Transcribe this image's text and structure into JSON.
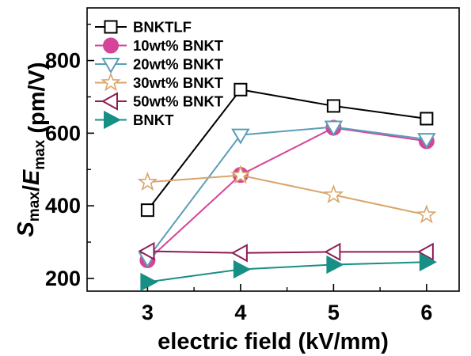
{
  "chart_data": {
    "type": "line",
    "xlabel": "electric field (kV/mm)",
    "ylabel": {
      "parts": [
        {
          "text": "S",
          "style": "italic",
          "sub": "max"
        },
        {
          "text": "/",
          "style": "normal"
        },
        {
          "text": "E",
          "style": "italic",
          "sub": "max"
        },
        {
          "text": " (pm/V)",
          "style": "normal"
        }
      ]
    },
    "x": [
      3,
      4,
      5,
      6
    ],
    "xlim": [
      2.35,
      6.35
    ],
    "ylim": [
      165,
      945
    ],
    "xticks": [
      3,
      4,
      5,
      6
    ],
    "yticks": [
      200,
      400,
      600,
      800
    ],
    "legend": "top-left",
    "grid": false,
    "series": [
      {
        "name": "BNKTLF",
        "values": [
          388,
          720,
          675,
          640
        ],
        "color": "#000000",
        "marker": "square",
        "filled": false
      },
      {
        "name": "10wt% BNKT",
        "values": [
          250,
          485,
          615,
          578
        ],
        "color": "#d6449a",
        "marker": "circle",
        "filled": true
      },
      {
        "name": "20wt% BNKT",
        "values": [
          255,
          595,
          617,
          583
        ],
        "color": "#5a9eb7",
        "marker": "triangle-down",
        "filled": false
      },
      {
        "name": "30wt% BNKT",
        "values": [
          465,
          484,
          430,
          375
        ],
        "color": "#d9a56a",
        "marker": "star",
        "filled": false
      },
      {
        "name": "50wt% BNKT",
        "values": [
          275,
          270,
          273,
          273
        ],
        "color": "#8e1d55",
        "marker": "triangle-left",
        "filled": false
      },
      {
        "name": "BNKT",
        "values": [
          190,
          225,
          238,
          245
        ],
        "color": "#178f85",
        "marker": "triangle-right",
        "filled": true
      }
    ]
  }
}
